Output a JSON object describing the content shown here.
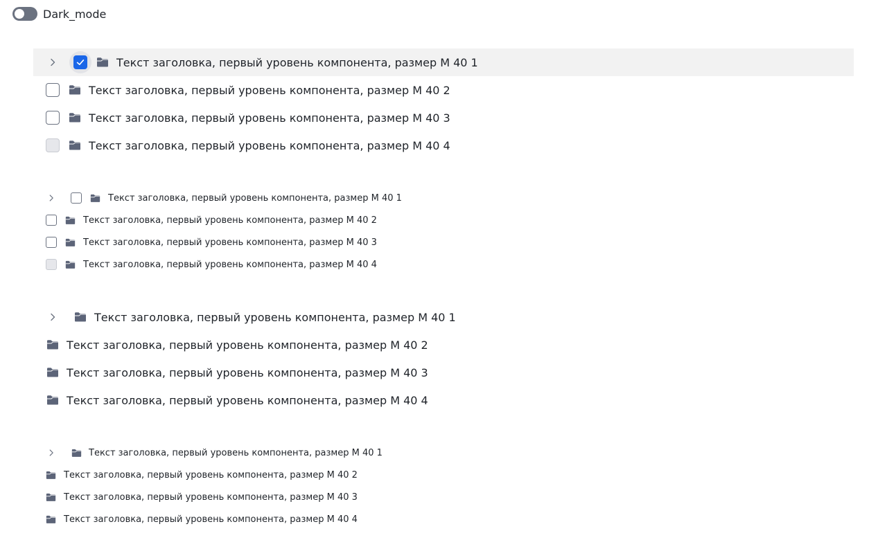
{
  "toggle": {
    "label": "Dark_mode",
    "checked": false
  },
  "colors": {
    "accent": "#1a66e8",
    "icon": "#5c6478",
    "selected_row": "#f2f2f2"
  },
  "groups": [
    {
      "items": [
        {
          "label": "Текст заголовка, первый уровень компонента, размер M 40 1"
        },
        {
          "label": "Текст заголовка, первый уровень компонента, размер M 40 2"
        },
        {
          "label": "Текст заголовка, первый уровень компонента, размер M 40 3"
        },
        {
          "label": "Текст заголовка, первый уровень компонента, размер M 40 4"
        }
      ]
    },
    {
      "items": [
        {
          "label": "Текст заголовка, первый уровень компонента, размер M 40 1"
        },
        {
          "label": "Текст заголовка, первый уровень компонента, размер M 40 2"
        },
        {
          "label": "Текст заголовка, первый уровень компонента, размер M 40 3"
        },
        {
          "label": "Текст заголовка, первый уровень компонента, размер M 40 4"
        }
      ]
    },
    {
      "items": [
        {
          "label": "Текст заголовка, первый уровень компонента, размер M 40 1"
        },
        {
          "label": "Текст заголовка, первый уровень компонента, размер M 40 2"
        },
        {
          "label": "Текст заголовка, первый уровень компонента, размер M 40 3"
        },
        {
          "label": "Текст заголовка, первый уровень компонента, размер M 40 4"
        }
      ]
    },
    {
      "items": [
        {
          "label": "Текст заголовка, первый уровень компонента, размер M 40 1"
        },
        {
          "label": "Текст заголовка, первый уровень компонента, размер M 40 2"
        },
        {
          "label": "Текст заголовка, первый уровень компонента, размер M 40 3"
        },
        {
          "label": "Текст заголовка, первый уровень компонента, размер M 40 4"
        }
      ]
    }
  ]
}
